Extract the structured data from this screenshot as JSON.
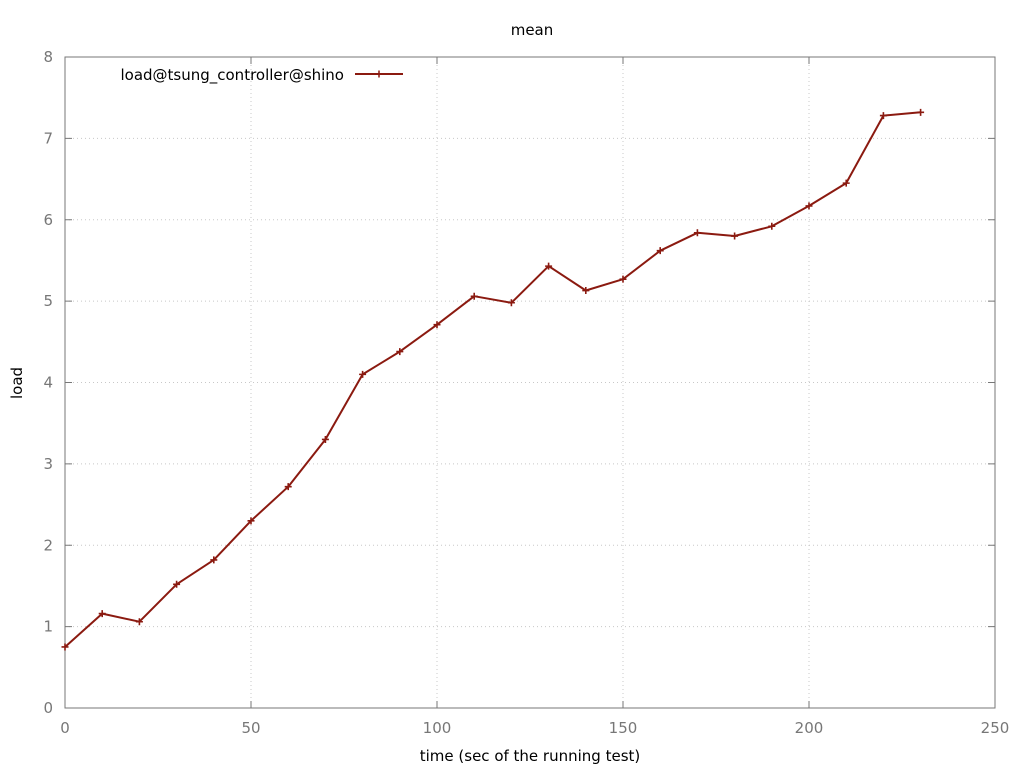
{
  "chart_data": {
    "type": "line",
    "title": "mean",
    "xlabel": "time (sec of the running test)",
    "ylabel": "load",
    "xlim": [
      0,
      250
    ],
    "ylim": [
      0,
      8
    ],
    "xticks": [
      0,
      50,
      100,
      150,
      200,
      250
    ],
    "yticks": [
      0,
      1,
      2,
      3,
      4,
      5,
      6,
      7,
      8
    ],
    "grid": true,
    "legend_position": "top-left",
    "series": [
      {
        "name": "load@tsung_controller@shino",
        "color": "#8b1a10",
        "x": [
          0,
          10,
          20,
          30,
          40,
          50,
          60,
          70,
          80,
          90,
          100,
          110,
          120,
          130,
          140,
          150,
          160,
          170,
          180,
          190,
          200,
          210,
          220,
          230
        ],
        "y": [
          0.75,
          1.16,
          1.06,
          1.52,
          1.82,
          2.3,
          2.72,
          3.3,
          4.1,
          4.38,
          4.71,
          5.06,
          4.98,
          5.43,
          5.13,
          5.27,
          5.62,
          5.84,
          5.8,
          5.92,
          6.17,
          6.45,
          7.28,
          7.32
        ]
      }
    ]
  }
}
